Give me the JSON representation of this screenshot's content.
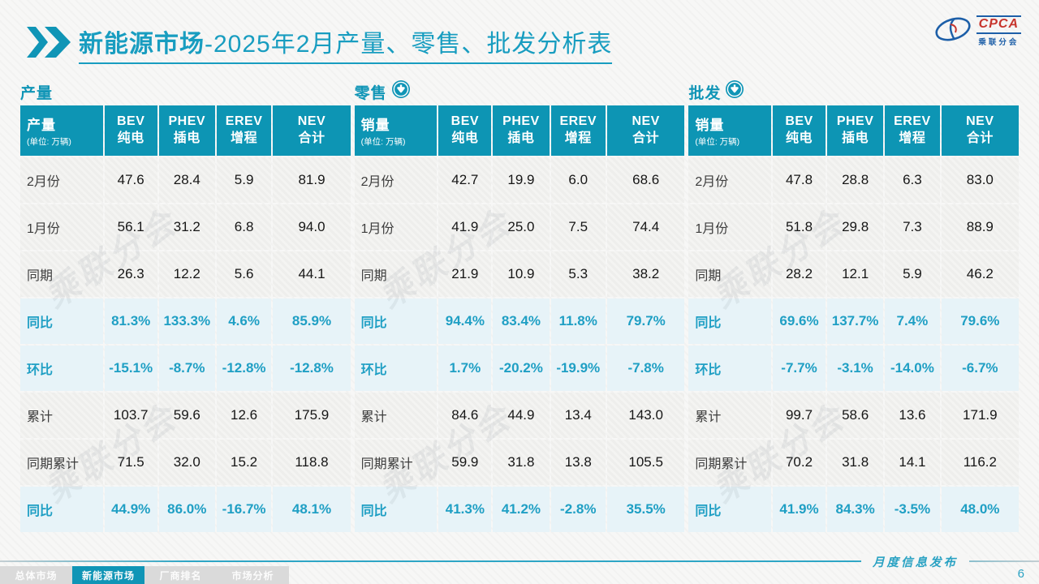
{
  "header": {
    "title_bold": "新能源市场",
    "title_rest": "-2025年2月产量、零售、批发分析表",
    "logo": {
      "name": "CPCA",
      "subtitle": "乘联分会"
    }
  },
  "watermark": "乘联分会",
  "accent_color": "#0d95b4",
  "ratio_color": "#1f9fc4",
  "tables": [
    {
      "section": "产量",
      "corner_label": "产量",
      "corner_unit": "(单位: 万辆)",
      "columns": [
        {
          "l1": "BEV",
          "l2": "纯电"
        },
        {
          "l1": "PHEV",
          "l2": "插电"
        },
        {
          "l1": "EREV",
          "l2": "增程"
        },
        {
          "l1": "NEV",
          "l2": "合计"
        }
      ],
      "rows": [
        {
          "label": "2月份",
          "type": "data",
          "values": [
            "47.6",
            "28.4",
            "5.9",
            "81.9"
          ]
        },
        {
          "label": "1月份",
          "type": "data",
          "values": [
            "56.1",
            "31.2",
            "6.8",
            "94.0"
          ]
        },
        {
          "label": "同期",
          "type": "data",
          "values": [
            "26.3",
            "12.2",
            "5.6",
            "44.1"
          ]
        },
        {
          "label": "同比",
          "type": "ratio",
          "values": [
            "81.3%",
            "133.3%",
            "4.6%",
            "85.9%"
          ]
        },
        {
          "label": "环比",
          "type": "ratio",
          "values": [
            "-15.1%",
            "-8.7%",
            "-12.8%",
            "-12.8%"
          ]
        },
        {
          "label": "累计",
          "type": "data",
          "values": [
            "103.7",
            "59.6",
            "12.6",
            "175.9"
          ]
        },
        {
          "label": "同期累计",
          "type": "data",
          "values": [
            "71.5",
            "32.0",
            "15.2",
            "118.8"
          ]
        },
        {
          "label": "同比",
          "type": "ratio",
          "values": [
            "44.9%",
            "86.0%",
            "-16.7%",
            "48.1%"
          ]
        }
      ]
    },
    {
      "section": "零售",
      "corner_label": "销量",
      "corner_unit": "(单位: 万辆)",
      "columns": [
        {
          "l1": "BEV",
          "l2": "纯电"
        },
        {
          "l1": "PHEV",
          "l2": "插电"
        },
        {
          "l1": "EREV",
          "l2": "增程"
        },
        {
          "l1": "NEV",
          "l2": "合计"
        }
      ],
      "rows": [
        {
          "label": "2月份",
          "type": "data",
          "values": [
            "42.7",
            "19.9",
            "6.0",
            "68.6"
          ]
        },
        {
          "label": "1月份",
          "type": "data",
          "values": [
            "41.9",
            "25.0",
            "7.5",
            "74.4"
          ]
        },
        {
          "label": "同期",
          "type": "data",
          "values": [
            "21.9",
            "10.9",
            "5.3",
            "38.2"
          ]
        },
        {
          "label": "同比",
          "type": "ratio",
          "values": [
            "94.4%",
            "83.4%",
            "11.8%",
            "79.7%"
          ]
        },
        {
          "label": "环比",
          "type": "ratio",
          "values": [
            "1.7%",
            "-20.2%",
            "-19.9%",
            "-7.8%"
          ]
        },
        {
          "label": "累计",
          "type": "data",
          "values": [
            "84.6",
            "44.9",
            "13.4",
            "143.0"
          ]
        },
        {
          "label": "同期累计",
          "type": "data",
          "values": [
            "59.9",
            "31.8",
            "13.8",
            "105.5"
          ]
        },
        {
          "label": "同比",
          "type": "ratio",
          "values": [
            "41.3%",
            "41.2%",
            "-2.8%",
            "35.5%"
          ]
        }
      ]
    },
    {
      "section": "批发",
      "corner_label": "销量",
      "corner_unit": "(单位: 万辆)",
      "columns": [
        {
          "l1": "BEV",
          "l2": "纯电"
        },
        {
          "l1": "PHEV",
          "l2": "插电"
        },
        {
          "l1": "EREV",
          "l2": "增程"
        },
        {
          "l1": "NEV",
          "l2": "合计"
        }
      ],
      "rows": [
        {
          "label": "2月份",
          "type": "data",
          "values": [
            "47.8",
            "28.8",
            "6.3",
            "83.0"
          ]
        },
        {
          "label": "1月份",
          "type": "data",
          "values": [
            "51.8",
            "29.8",
            "7.3",
            "88.9"
          ]
        },
        {
          "label": "同期",
          "type": "data",
          "values": [
            "28.2",
            "12.1",
            "5.9",
            "46.2"
          ]
        },
        {
          "label": "同比",
          "type": "ratio",
          "values": [
            "69.6%",
            "137.7%",
            "7.4%",
            "79.6%"
          ]
        },
        {
          "label": "环比",
          "type": "ratio",
          "values": [
            "-7.7%",
            "-3.1%",
            "-14.0%",
            "-6.7%"
          ]
        },
        {
          "label": "累计",
          "type": "data",
          "values": [
            "99.7",
            "58.6",
            "13.6",
            "171.9"
          ]
        },
        {
          "label": "同期累计",
          "type": "data",
          "values": [
            "70.2",
            "31.8",
            "14.1",
            "116.2"
          ]
        },
        {
          "label": "同比",
          "type": "ratio",
          "values": [
            "41.9%",
            "84.3%",
            "-3.5%",
            "48.0%"
          ]
        }
      ]
    }
  ],
  "footer": {
    "tabs": [
      {
        "label": "总体市场",
        "active": false
      },
      {
        "label": "新能源市场",
        "active": true
      },
      {
        "label": "厂商排名",
        "active": false
      },
      {
        "label": "市场分析",
        "active": false
      }
    ],
    "publication": "月度信息发布",
    "page_number": "6"
  }
}
